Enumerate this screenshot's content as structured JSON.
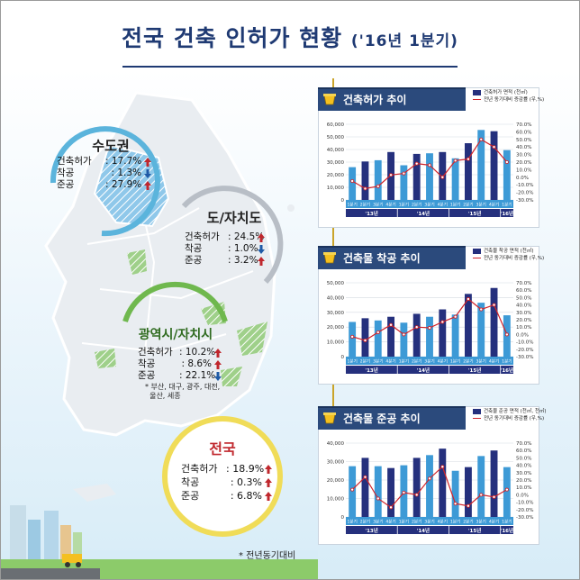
{
  "title": {
    "main": "전국 건축 인허가 현황",
    "sub": "('16년 1분기)"
  },
  "regions": {
    "capital": {
      "name": "수도권",
      "stats": [
        {
          "label": "건축허가",
          "value": ": 17.7%",
          "dir": "up"
        },
        {
          "label": "착공",
          "value": ":  1.3%",
          "dir": "down"
        },
        {
          "label": "준공",
          "value": ": 27.9%",
          "dir": "up"
        }
      ]
    },
    "provinces": {
      "name": "도/자치도",
      "stats": [
        {
          "label": "건축허가",
          "value": ": 24.5%",
          "dir": "up"
        },
        {
          "label": "착공",
          "value": ":  1.0%",
          "dir": "down"
        },
        {
          "label": "준공",
          "value": ":  3.2%",
          "dir": "up"
        }
      ]
    },
    "metro": {
      "name": "광역시/자치시",
      "stats": [
        {
          "label": "건축허가",
          "value": ": 10.2%",
          "dir": "up"
        },
        {
          "label": "착공",
          "value": ":  8.6%",
          "dir": "up"
        },
        {
          "label": "준공",
          "value": ": 22.1%",
          "dir": "down"
        }
      ],
      "note": "* 부산, 대구, 광주, 대전,\n  울산, 세종"
    },
    "national": {
      "name": "전국",
      "stats": [
        {
          "label": "건축허가",
          "value": ": 18.9%",
          "dir": "up"
        },
        {
          "label": "착공",
          "value": ":   0.3%",
          "dir": "up"
        },
        {
          "label": "준공",
          "value": ":   6.8%",
          "dir": "up"
        }
      ]
    }
  },
  "footnote": "* 전년동기대비",
  "colors": {
    "navy": "#1f3a73",
    "bar_light": "#3d9ad6",
    "bar_dark": "#25307d",
    "line": "#d0242a",
    "up_arrow": "#c0272d",
    "down_arrow": "#1f5aa6"
  },
  "chart_data": [
    {
      "type": "bar",
      "title": "건축허가 추이",
      "categories": [
        "1분기",
        "2분기",
        "3분기",
        "4분기",
        "1분기",
        "2분기",
        "3분기",
        "4분기",
        "1분기",
        "2분기",
        "3분기",
        "4분기",
        "1분기"
      ],
      "year_groups": [
        {
          "label": "'13년",
          "count": 4
        },
        {
          "label": "'14년",
          "count": 4
        },
        {
          "label": "'15년",
          "count": 4
        },
        {
          "label": "'16년",
          "count": 1
        }
      ],
      "series": [
        {
          "name": "건축허가 면적 (천㎡)",
          "kind": "bar",
          "axis": "left",
          "values": [
            26000,
            30500,
            31500,
            38000,
            27500,
            36500,
            37000,
            38000,
            33000,
            45000,
            55500,
            54500,
            39500
          ]
        },
        {
          "name": "전년 동기대비 증감률 (우,%)",
          "kind": "line",
          "axis": "right",
          "values": [
            -5,
            -15,
            -12,
            3,
            5,
            18,
            16,
            0,
            22,
            24,
            50,
            40,
            20
          ]
        }
      ],
      "ylim_left": [
        0,
        60000
      ],
      "yticks_left": [
        "0",
        "10,000",
        "20,000",
        "30,000",
        "40,000",
        "50,000",
        "60,000"
      ],
      "ylim_right": [
        -30,
        70
      ],
      "yticks_right": [
        "-30.0%",
        "-20.0%",
        "-10.0%",
        "0.0%",
        "10.0%",
        "20.0%",
        "30.0%",
        "40.0%",
        "50.0%",
        "60.0%",
        "70.0%"
      ]
    },
    {
      "type": "bar",
      "title": "건축물 착공 추이",
      "categories": [
        "1분기",
        "2분기",
        "3분기",
        "4분기",
        "1분기",
        "2분기",
        "3분기",
        "4분기",
        "1분기",
        "2분기",
        "3분기",
        "4분기",
        "1분기"
      ],
      "year_groups": [
        {
          "label": "'13년",
          "count": 4
        },
        {
          "label": "'14년",
          "count": 4
        },
        {
          "label": "'15년",
          "count": 4
        },
        {
          "label": "'16년",
          "count": 1
        }
      ],
      "series": [
        {
          "name": "건축물 착공 면적 (천㎡)",
          "kind": "bar",
          "axis": "left",
          "values": [
            23500,
            26000,
            24500,
            27000,
            23000,
            29000,
            27000,
            32000,
            28500,
            42500,
            36500,
            46500,
            28000
          ]
        },
        {
          "name": "전년 동기대비 증감률 (우,%)",
          "kind": "line",
          "axis": "right",
          "values": [
            -3,
            -8,
            3,
            13,
            0,
            10,
            9,
            17,
            24,
            48,
            34,
            40,
            0
          ]
        }
      ],
      "ylim_left": [
        0,
        50000
      ],
      "yticks_left": [
        "0",
        "10,000",
        "20,000",
        "30,000",
        "40,000",
        "50,000"
      ],
      "ylim_right": [
        -30,
        70
      ],
      "yticks_right": [
        "-30.0%",
        "-20.0%",
        "-10.0%",
        "0.0%",
        "10.0%",
        "20.0%",
        "30.0%",
        "40.0%",
        "50.0%",
        "60.0%",
        "70.0%"
      ]
    },
    {
      "type": "bar",
      "title": "건축물 준공 추이",
      "categories": [
        "1분기",
        "2분기",
        "3분기",
        "4분기",
        "1분기",
        "2분기",
        "3분기",
        "4분기",
        "1분기",
        "2분기",
        "3분기",
        "4분기",
        "1분기"
      ],
      "year_groups": [
        {
          "label": "'13년",
          "count": 4
        },
        {
          "label": "'14년",
          "count": 4
        },
        {
          "label": "'15년",
          "count": 4
        },
        {
          "label": "'16년",
          "count": 1
        }
      ],
      "series": [
        {
          "name": "건축물 준공 면적 (천㎡, 천㎡)",
          "kind": "bar",
          "axis": "left",
          "values": [
            27500,
            32000,
            27500,
            26500,
            28000,
            32000,
            33500,
            37000,
            25000,
            27000,
            33000,
            36000,
            27000
          ]
        },
        {
          "name": "전년 동기대비 증감률 (우,%)",
          "kind": "line",
          "axis": "right",
          "values": [
            7,
            24,
            -5,
            -17,
            3,
            0,
            22,
            38,
            -12,
            -15,
            0,
            -3,
            7
          ]
        }
      ],
      "ylim_left": [
        0,
        40000
      ],
      "yticks_left": [
        "0",
        "10,000",
        "20,000",
        "30,000",
        "40,000"
      ],
      "ylim_right": [
        -30,
        70
      ],
      "yticks_right": [
        "-30.0%",
        "-20.0%",
        "-10.0%",
        "0.0%",
        "10.0%",
        "20.0%",
        "30.0%",
        "40.0%",
        "50.0%",
        "60.0%",
        "70.0%"
      ]
    }
  ]
}
